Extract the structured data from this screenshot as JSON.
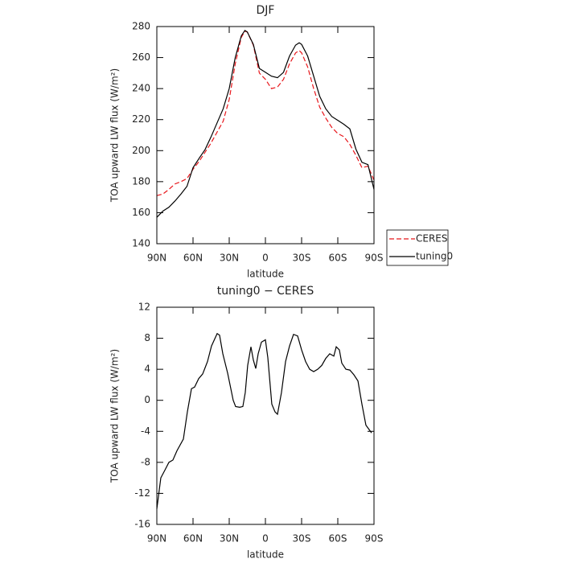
{
  "chart_data": [
    {
      "type": "line",
      "title": "DJF",
      "xlabel": "latitude",
      "ylabel": "TOA upward LW flux (W/m²)",
      "x": [
        90,
        85,
        80,
        75,
        70,
        65,
        60,
        55,
        50,
        45,
        40,
        35,
        30,
        25,
        20,
        17,
        15,
        10,
        5,
        0,
        -5,
        -10,
        -15,
        -20,
        -25,
        -28,
        -30,
        -35,
        -40,
        -45,
        -50,
        -55,
        -60,
        -65,
        -70,
        -75,
        -80,
        -85,
        -90
      ],
      "series": [
        {
          "name": "CERES",
          "color": "#e8161b",
          "line_style": "dashed",
          "values": [
            171,
            172,
            175,
            178.5,
            180,
            182,
            188,
            193,
            199,
            205,
            212,
            219,
            233,
            256,
            273,
            277,
            276.5,
            268,
            250,
            246,
            240,
            241,
            246,
            256,
            263,
            264.5,
            263,
            254,
            240,
            228,
            221,
            215,
            211,
            209,
            204,
            197,
            189,
            190,
            181
          ]
        },
        {
          "name": "tuning0",
          "color": "#000000",
          "line_style": "solid",
          "values": [
            157,
            161,
            163.5,
            167.5,
            172,
            177,
            189,
            195,
            200.7,
            209,
            218,
            227,
            240,
            260,
            274,
            277.5,
            276.5,
            268.5,
            253,
            250.5,
            248,
            247,
            250.5,
            261,
            268,
            269.5,
            268.5,
            261,
            248,
            235,
            227,
            222,
            219.5,
            217,
            214,
            201,
            192.5,
            191,
            175
          ]
        }
      ],
      "xlim": [
        90,
        -90
      ],
      "xticks": [
        {
          "value": 90,
          "label": "90N"
        },
        {
          "value": 60,
          "label": "60N"
        },
        {
          "value": 30,
          "label": "30N"
        },
        0,
        {
          "value": -30,
          "label": "30S"
        },
        {
          "value": -60,
          "label": "60S"
        },
        {
          "value": -90,
          "label": "90S"
        }
      ],
      "ylim": [
        140,
        280
      ],
      "yticks": [
        140,
        160,
        180,
        200,
        220,
        240,
        260,
        280
      ],
      "legend": "right"
    },
    {
      "type": "line",
      "title": "tuning0 − CERES",
      "xlabel": "latitude",
      "ylabel": "TOA upward LW flux (W/m²)",
      "x": [
        90,
        86.7,
        83.3,
        80,
        76.7,
        73.3,
        68,
        64.7,
        61.3,
        58.7,
        55.3,
        52,
        48,
        44.7,
        40,
        38,
        35.3,
        31.3,
        26.7,
        24.7,
        21.3,
        18.7,
        16.7,
        14.7,
        12,
        10,
        8,
        6,
        3.3,
        0,
        -2,
        -5.3,
        -8,
        -10,
        -13.3,
        -16.7,
        -20,
        -23.3,
        -26.7,
        -30,
        -33.3,
        -36.7,
        -40,
        -43.3,
        -46.7,
        -50,
        -53.3,
        -56.7,
        -58.7,
        -61.3,
        -63.3,
        -66.7,
        -70,
        -73.3,
        -76.7,
        -80,
        -83.3,
        -88
      ],
      "values": [
        -14,
        -10,
        -9,
        -8,
        -7.7,
        -6.5,
        -5,
        -1.5,
        1.5,
        1.7,
        2.8,
        3.4,
        5,
        7,
        8.6,
        8.4,
        6,
        3.5,
        0,
        -0.8,
        -0.9,
        -0.8,
        1,
        4.5,
        6.9,
        5.2,
        4.1,
        6,
        7.5,
        7.8,
        5.5,
        -0.5,
        -1.5,
        -1.8,
        1,
        5,
        7,
        8.5,
        8.3,
        6.5,
        5,
        4,
        3.7,
        4,
        4.5,
        5.4,
        6,
        5.7,
        6.9,
        6.5,
        4.8,
        4,
        3.9,
        3.3,
        2.5,
        -0.5,
        -3.2,
        -4.2
      ],
      "color": "#000000",
      "xlim": [
        90,
        -90
      ],
      "xticks": [
        {
          "value": 90,
          "label": "90N"
        },
        {
          "value": 60,
          "label": "60N"
        },
        {
          "value": 30,
          "label": "30N"
        },
        0,
        {
          "value": -30,
          "label": "30S"
        },
        {
          "value": -60,
          "label": "60S"
        },
        {
          "value": -90,
          "label": "90S"
        }
      ],
      "ylim": [
        -16,
        12
      ],
      "yticks": [
        -16,
        -12,
        -8,
        -4,
        0,
        4,
        8,
        12
      ]
    }
  ]
}
